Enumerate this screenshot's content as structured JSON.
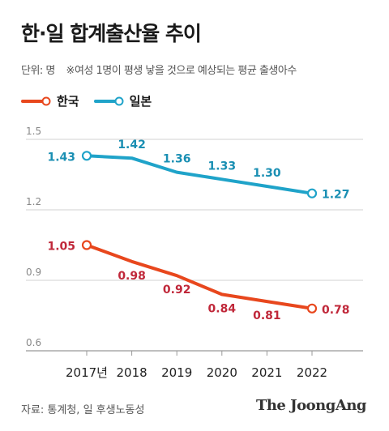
{
  "header": {
    "title": "한·일 합계출산율 추이",
    "unit": "단위: 명",
    "note": "※여성 1명이 평생 낳을 것으로 예상되는 평균 출생아수"
  },
  "footer": {
    "source": "자료: 통계청, 일 후생노동성",
    "logo": "The JoongAng"
  },
  "colors": {
    "korea": "#e8471d",
    "japan": "#1fa3c9",
    "korea_label": "#c0283a",
    "japan_label": "#1a8fb3",
    "grid": "#d0d0d0",
    "axis": "#888888"
  },
  "chart_data": {
    "type": "line",
    "title": "한·일 합계출산율 추이",
    "x": [
      "2017년",
      "2018",
      "2019",
      "2020",
      "2021",
      "2022"
    ],
    "ylim": [
      0.6,
      1.5
    ],
    "yticks": [
      0.6,
      0.9,
      1.2,
      1.5
    ],
    "ytick_labels": [
      "0.6",
      "0.9",
      "1.2",
      "1.5"
    ],
    "legend_position": "top-left",
    "grid": true,
    "series": [
      {
        "name": "한국",
        "color_key": "korea",
        "values": [
          1.05,
          0.98,
          0.92,
          0.84,
          0.81,
          0.78
        ],
        "labels": [
          "1.05",
          "0.98",
          "0.92",
          "0.84",
          "0.81",
          "0.78"
        ]
      },
      {
        "name": "일본",
        "color_key": "japan",
        "values": [
          1.43,
          1.42,
          1.36,
          1.33,
          1.3,
          1.27
        ],
        "labels": [
          "1.43",
          "1.42",
          "1.36",
          "1.33",
          "1.30",
          "1.27"
        ]
      }
    ]
  }
}
